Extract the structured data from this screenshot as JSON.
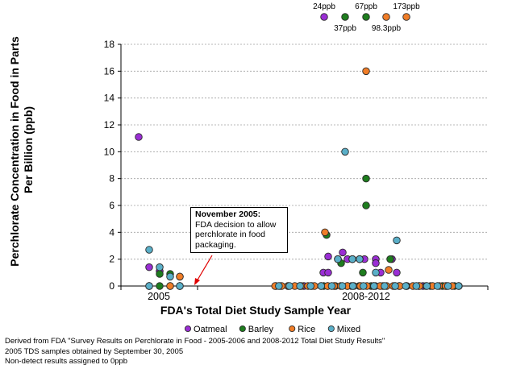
{
  "chart_data": {
    "type": "scatter",
    "xlabel": "FDA's Total Diet Study Sample Year",
    "ylabel": "Perchlorate Concentration in Food in Parts Per Billion (ppb)",
    "categories": [
      "2005",
      "2008-2012"
    ],
    "ylim": [
      0,
      18
    ],
    "yticks": [
      "0",
      "2",
      "4",
      "6",
      "8",
      "10",
      "12",
      "14",
      "16",
      "18"
    ],
    "grid": true,
    "legend_position": "bottom",
    "series": [
      {
        "name": "Oatmeal",
        "color": "#9a2ed4",
        "points_2005": [
          11.1,
          1.4,
          1.1,
          0,
          0
        ],
        "points_2008_2012": [
          2.0,
          2.0,
          2.0,
          2.2,
          2.0,
          2.5,
          2.0,
          2.0,
          1.0,
          1.0,
          1.0,
          2.0,
          2.0,
          2.0,
          1.7,
          1.0,
          0,
          0,
          0,
          0,
          0,
          0,
          0,
          0
        ]
      },
      {
        "name": "Barley",
        "color": "#1e7d1e",
        "points_2005": [
          0.9,
          0.9,
          0.7,
          0,
          0
        ],
        "points_2008_2012": [
          8.0,
          6.0,
          3.8,
          2.0,
          1.7,
          1.0,
          0,
          0,
          0,
          0,
          0,
          0,
          0,
          0,
          0,
          0,
          0,
          0,
          0,
          0,
          0,
          0
        ]
      },
      {
        "name": "Rice",
        "color": "#f07d28",
        "points_2005": [
          0.7,
          0,
          0,
          0
        ],
        "points_2008_2012": [
          16.0,
          4.0,
          1.2,
          0,
          0,
          0,
          0,
          0,
          0,
          0,
          0,
          0,
          0,
          0,
          0,
          0,
          0,
          0,
          0,
          0,
          0,
          0,
          0,
          0,
          0,
          0,
          0,
          0,
          0,
          0,
          0,
          0
        ]
      },
      {
        "name": "Mixed",
        "color": "#5aafc8",
        "points_2005": [
          2.7,
          1.4,
          0.7,
          0,
          0
        ],
        "points_2008_2012": [
          10.0,
          3.4,
          2.0,
          2.0,
          2.0,
          1.0,
          0,
          0,
          0,
          0,
          0,
          0,
          0,
          0,
          0,
          0,
          0,
          0,
          0,
          0,
          0,
          0,
          0,
          0
        ]
      }
    ],
    "offscale_points": [
      {
        "series": "Oatmeal",
        "label": "24ppb"
      },
      {
        "series": "Barley",
        "label": "37ppb"
      },
      {
        "series": "Barley",
        "label": "67ppb"
      },
      {
        "series": "Rice",
        "label": "98.3ppb"
      },
      {
        "series": "Rice",
        "label": "173ppb"
      }
    ]
  },
  "annotation": {
    "title": "November 2005:",
    "body": "FDA decision to allow perchlorate in food packaging."
  },
  "footnotes": [
    "Derived from FDA \"Survey Results on Perchlorate in Food - 2005-2006 and 2008-2012 Total Diet Study Results\"",
    "2005 TDS samples obtained by September 30, 2005",
    "Non-detect results assigned to 0ppb"
  ]
}
